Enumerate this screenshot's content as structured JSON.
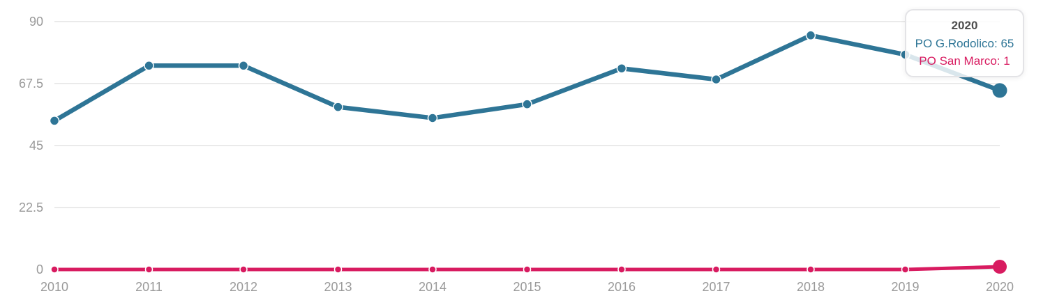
{
  "chart_data": {
    "type": "line",
    "title": "",
    "xlabel": "",
    "ylabel": "",
    "categories": [
      "2010",
      "2011",
      "2012",
      "2013",
      "2014",
      "2015",
      "2016",
      "2017",
      "2018",
      "2019",
      "2020"
    ],
    "series": [
      {
        "name": "PO G.Rodolico",
        "color": "#2e7596",
        "values": [
          54,
          74,
          74,
          59,
          55,
          60,
          73,
          69,
          85,
          78,
          65
        ],
        "highlight_index": 10
      },
      {
        "name": "PO San Marco",
        "color": "#d81b60",
        "values": [
          0,
          0,
          0,
          0,
          0,
          0,
          0,
          0,
          0,
          0,
          1
        ],
        "highlight_index": 10
      }
    ],
    "yticks": [
      "0",
      "22.5",
      "45",
      "67.5",
      "90"
    ],
    "ytick_values": [
      0,
      22.5,
      45,
      67.5,
      90
    ],
    "ylim": [
      0,
      90
    ],
    "grid": true,
    "legend_position": "none",
    "gridline_color": "#e3e3e3",
    "axis_label_color": "#9a9a9a"
  },
  "tooltip": {
    "title": "2020",
    "rows": [
      {
        "text": "PO G.Rodolico: 65",
        "color": "#2e7596"
      },
      {
        "text": "PO San Marco: 1",
        "color": "#d81b60"
      }
    ]
  }
}
